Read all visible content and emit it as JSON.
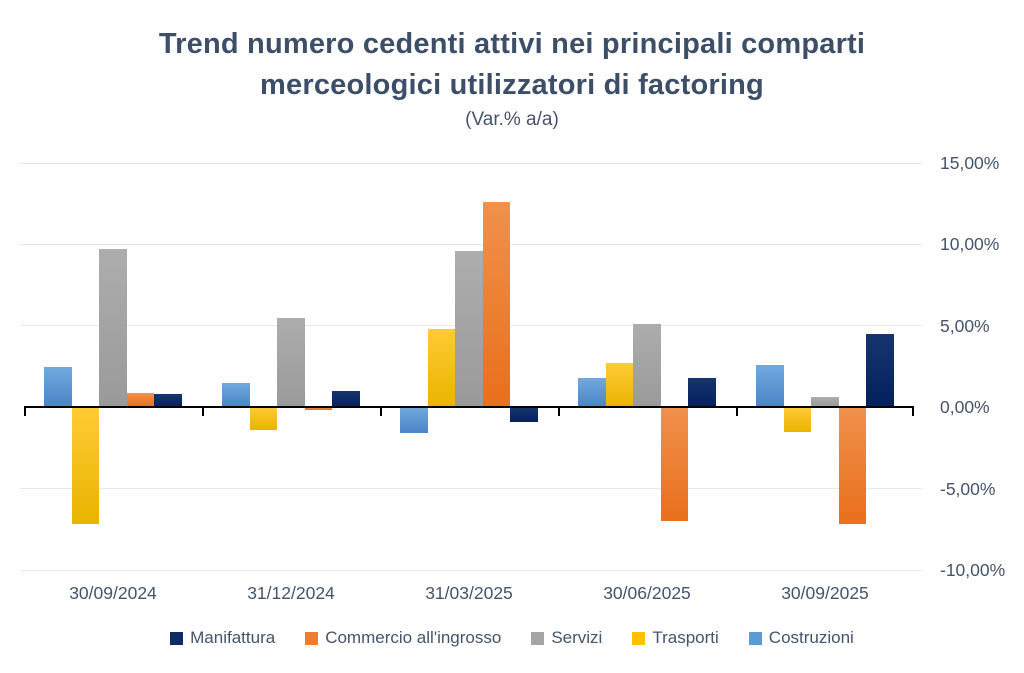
{
  "chart_data": {
    "type": "bar",
    "title": "Trend numero cedenti attivi nei principali comparti merceologici utilizzatori di factoring",
    "title_lines": [
      "Trend numero cedenti attivi nei principali comparti",
      "merceologici utilizzatori di factoring"
    ],
    "subtitle": "(Var.% a/a)",
    "xlabel": "",
    "ylabel": "",
    "ylim": [
      -10,
      15
    ],
    "grid": true,
    "legend_position": "bottom",
    "bar_draw_order": "reverse_of_series",
    "categories": [
      "30/09/2024",
      "31/12/2024",
      "31/03/2025",
      "30/06/2025",
      "30/09/2025"
    ],
    "series": [
      {
        "name": "Manifattura",
        "color": "#0e2b63",
        "gradient_top": "#16356f",
        "gradient_bottom": "#04205a",
        "values": [
          0.8,
          1.0,
          -0.9,
          1.8,
          4.5
        ]
      },
      {
        "name": "Commercio all'ingrosso",
        "color": "#ed7d31",
        "gradient_top": "#f0914c",
        "gradient_bottom": "#e96f1b",
        "values": [
          0.9,
          -0.2,
          12.6,
          -7.0,
          -7.2
        ]
      },
      {
        "name": "Servizi",
        "color": "#a5a5a5",
        "gradient_top": "#adadad",
        "gradient_bottom": "#9a9a9a",
        "values": [
          9.7,
          5.5,
          9.6,
          5.1,
          0.6
        ]
      },
      {
        "name": "Trasporti",
        "color": "#ffc000",
        "gradient_top": "#ffcb35",
        "gradient_bottom": "#e9b400",
        "values": [
          -7.2,
          -1.4,
          4.8,
          2.7,
          -1.5
        ]
      },
      {
        "name": "Costruzioni",
        "color": "#5b9bd5",
        "gradient_top": "#71a9df",
        "gradient_bottom": "#4a85c6",
        "values": [
          2.5,
          1.5,
          -1.6,
          1.8,
          2.6
        ]
      }
    ],
    "yticks": [
      {
        "value": 15,
        "label": "15,00%"
      },
      {
        "value": 10,
        "label": "10,00%"
      },
      {
        "value": 5,
        "label": "5,00%"
      },
      {
        "value": 0,
        "label": "0,00%"
      },
      {
        "value": -5,
        "label": "-5,00%"
      },
      {
        "value": -10,
        "label": "-10,00%"
      }
    ],
    "grid_color": "#e4e9f0",
    "axis_color": "#000000",
    "text_color": "#44546a",
    "title_color": "#3d4f68"
  }
}
